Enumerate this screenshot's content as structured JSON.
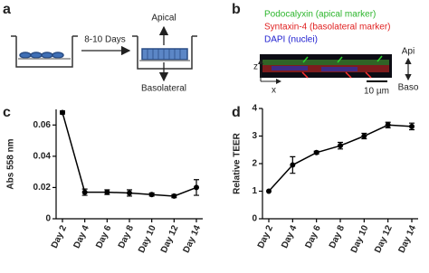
{
  "panel_a": {
    "label": "a",
    "step": "8-10 Days",
    "apical": "Apical",
    "basolateral": "Basolateral"
  },
  "panel_b": {
    "label": "b",
    "marker1": "Podocalyxin (apical marker)",
    "marker2": "Syntaxin-4 (basolateral marker)",
    "marker3": "DAPI (nuclei)",
    "z_axis": "z",
    "x_axis": "x",
    "scale": "10 µm",
    "top": "Api",
    "bottom": "Baso"
  },
  "chart_data": [
    {
      "type": "line",
      "label": "c",
      "ylabel": "Abs 558 nm",
      "color": "#000000",
      "categories": [
        "Day 2",
        "Day 4",
        "Day 6",
        "Day 8",
        "Day 10",
        "Day 12",
        "Day 14"
      ],
      "values": [
        0.068,
        0.017,
        0.017,
        0.0165,
        0.0155,
        0.0145,
        0.02
      ],
      "errors": [
        0.001,
        0.002,
        0.0015,
        0.002,
        0.001,
        0.001,
        0.005
      ],
      "ylim": [
        0,
        0.07
      ],
      "yticks": [
        0,
        0.02,
        0.04,
        0.06
      ]
    },
    {
      "type": "line",
      "label": "d",
      "ylabel": "Relative TEER",
      "color": "#000000",
      "categories": [
        "Day 2",
        "Day 4",
        "Day 6",
        "Day 8",
        "Day 10",
        "Day 12",
        "Day 14"
      ],
      "values": [
        1,
        1.95,
        2.4,
        2.65,
        3.0,
        3.4,
        3.35
      ],
      "errors": [
        0,
        0.3,
        0.05,
        0.12,
        0.1,
        0.1,
        0.12
      ],
      "ylim": [
        0,
        4
      ],
      "yticks": [
        0,
        1,
        2,
        3,
        4
      ]
    }
  ]
}
